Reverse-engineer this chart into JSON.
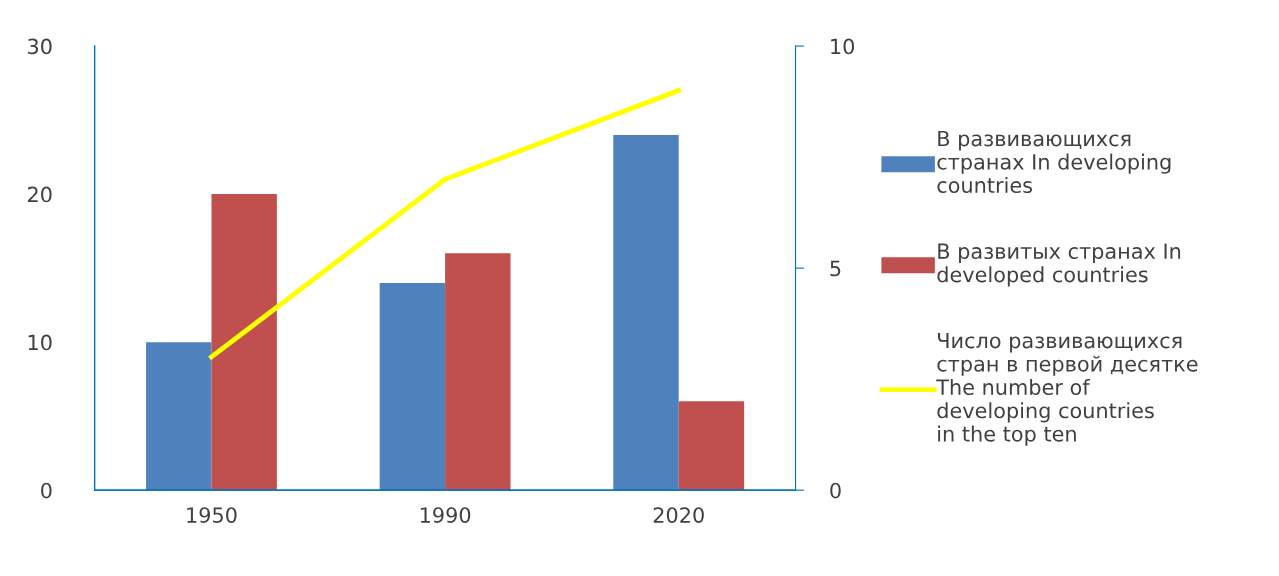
{
  "chart_data": {
    "type": "bar",
    "categories": [
      "1950",
      "1990",
      "2020"
    ],
    "series": [
      {
        "name": "В развивающихся странах In developing countries",
        "color": "#4f81bd",
        "values": [
          10,
          14,
          24
        ]
      },
      {
        "name": "В развитых странах In developed countries",
        "color": "#c0504d",
        "values": [
          20,
          16,
          6
        ]
      },
      {
        "name": "Число развивающихся стран в первой десятке The number of developing countries in the top ten",
        "color": "#ffff00",
        "type": "line",
        "axis": "y2",
        "values": [
          3,
          7,
          9
        ]
      }
    ],
    "ylim": [
      0,
      30
    ],
    "yticks": [
      0,
      10,
      20,
      30
    ],
    "y2lim": [
      0,
      10
    ],
    "y2ticks": [
      0,
      5,
      10
    ],
    "grid": false,
    "legend": "right",
    "marker": "none",
    "line_style": "solid"
  }
}
